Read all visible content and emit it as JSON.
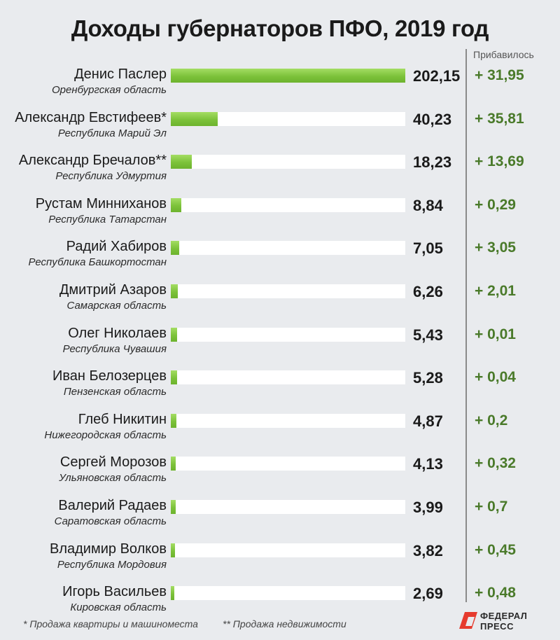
{
  "chart_data": {
    "type": "bar",
    "title": "Доходы губернаторов ПФО, 2019 год",
    "gain_header": "Прибавилось",
    "colors": {
      "bar": "#7cc23a",
      "gain_text": "#4a7a2a",
      "track": "#ffffff",
      "background": "#e9ebee"
    },
    "xlim": [
      0,
      202.15
    ],
    "rows": [
      {
        "name": "Денис Паслер",
        "region": "Оренбургская область",
        "value": 202.15,
        "value_label": "202,15",
        "gain_label": "+ 31,95"
      },
      {
        "name": "Александр Евстифеев*",
        "region": "Республика Марий Эл",
        "value": 40.23,
        "value_label": "40,23",
        "gain_label": "+ 35,81"
      },
      {
        "name": "Александр Бречалов**",
        "region": "Республика Удмуртия",
        "value": 18.23,
        "value_label": "18,23",
        "gain_label": "+ 13,69"
      },
      {
        "name": "Рустам Минниханов",
        "region": "Республика Татарстан",
        "value": 8.84,
        "value_label": "8,84",
        "gain_label": "+ 0,29"
      },
      {
        "name": "Радий Хабиров",
        "region": "Республика Башкортостан",
        "value": 7.05,
        "value_label": "7,05",
        "gain_label": "+ 3,05"
      },
      {
        "name": "Дмитрий Азаров",
        "region": "Самарская область",
        "value": 6.26,
        "value_label": "6,26",
        "gain_label": "+ 2,01"
      },
      {
        "name": "Олег Николаев",
        "region": "Республика Чувашия",
        "value": 5.43,
        "value_label": "5,43",
        "gain_label": "+ 0,01"
      },
      {
        "name": "Иван Белозерцев",
        "region": "Пензенская область",
        "value": 5.28,
        "value_label": "5,28",
        "gain_label": "+ 0,04"
      },
      {
        "name": "Глеб Никитин",
        "region": "Нижегородская область",
        "value": 4.87,
        "value_label": "4,87",
        "gain_label": "+ 0,2"
      },
      {
        "name": "Сергей Морозов",
        "region": "Ульяновская область",
        "value": 4.13,
        "value_label": "4,13",
        "gain_label": "+ 0,32"
      },
      {
        "name": "Валерий Радаев",
        "region": "Саратовская область",
        "value": 3.99,
        "value_label": "3,99",
        "gain_label": "+ 0,7"
      },
      {
        "name": "Владимир Волков",
        "region": "Республика Мордовия",
        "value": 3.82,
        "value_label": "3,82",
        "gain_label": "+ 0,45"
      },
      {
        "name": "Игорь Васильев",
        "region": "Кировская область",
        "value": 2.69,
        "value_label": "2,69",
        "gain_label": "+ 0,48"
      }
    ]
  },
  "footnotes": {
    "note1": "*  Продажа квартиры и машиноместа",
    "note2": "**  Продажа недвижимости"
  },
  "logo": {
    "line1": "ФЕДЕРАЛ",
    "line2": "ПРЕСС",
    "icon": "federalpress-logo-icon"
  }
}
